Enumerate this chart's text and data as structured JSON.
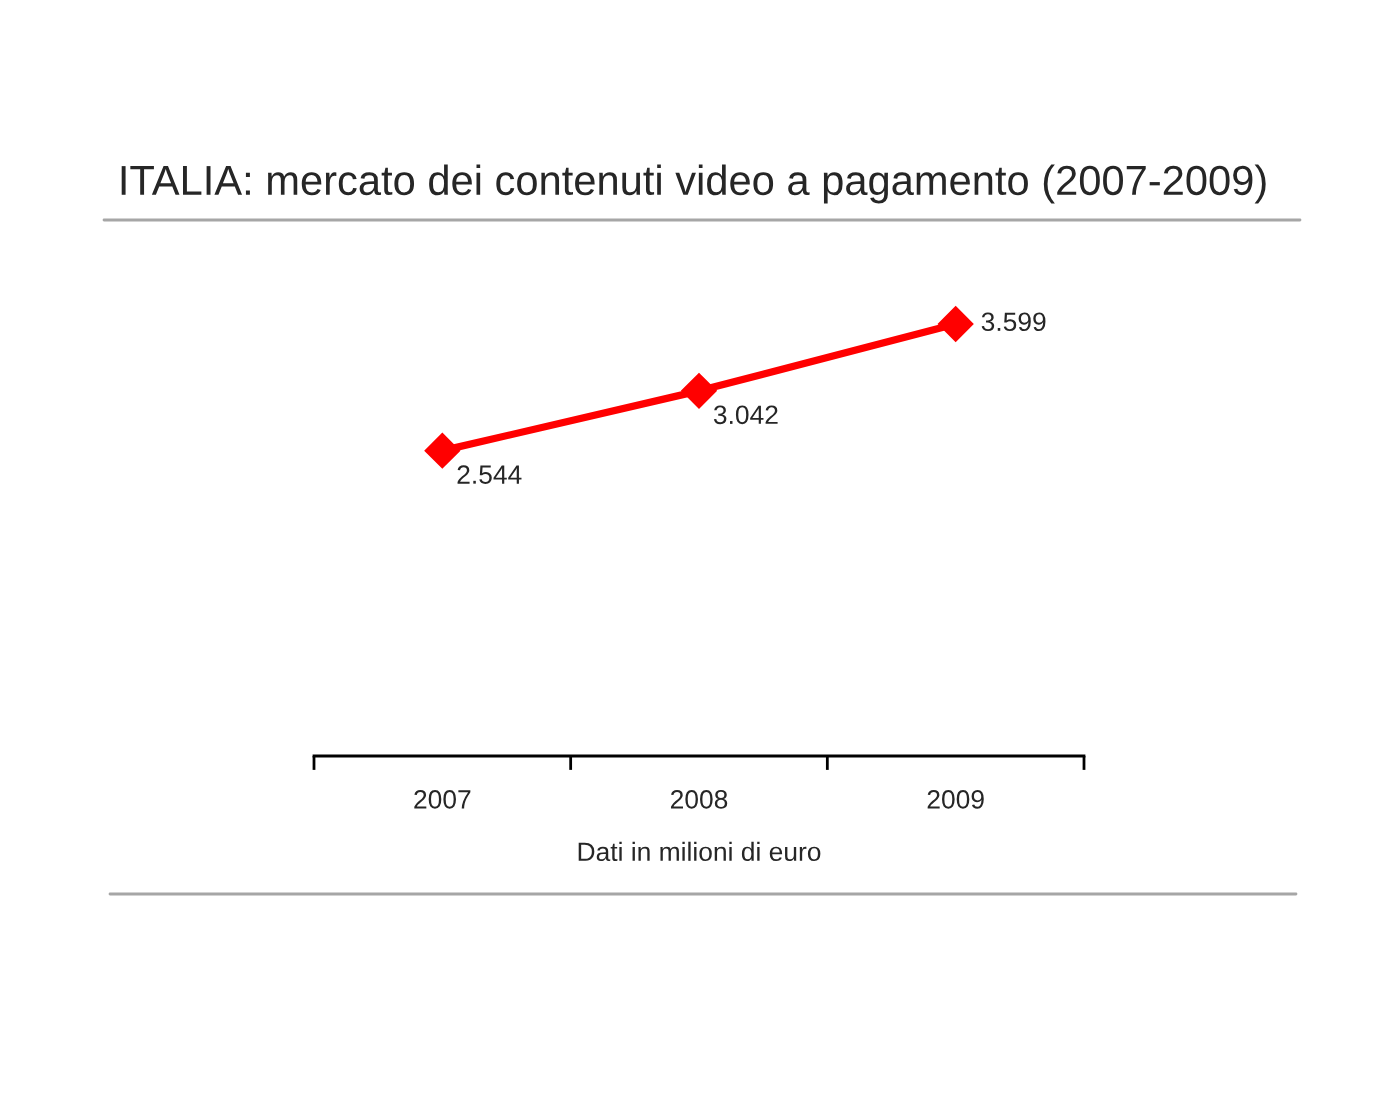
{
  "chart_data": {
    "type": "line",
    "title": "ITALIA: mercato dei contenuti video a pagamento (2007-2009)",
    "xlabel": "Dati in milioni di euro",
    "categories": [
      "2007",
      "2008",
      "2009"
    ],
    "series": [
      {
        "color": "#ff0000",
        "values": [
          2544,
          3042,
          3599
        ],
        "value_labels": [
          "2.544",
          "3.042",
          "3.599"
        ]
      }
    ],
    "tick_labels": "x",
    "marker": "diamond",
    "line_style": "solid"
  }
}
